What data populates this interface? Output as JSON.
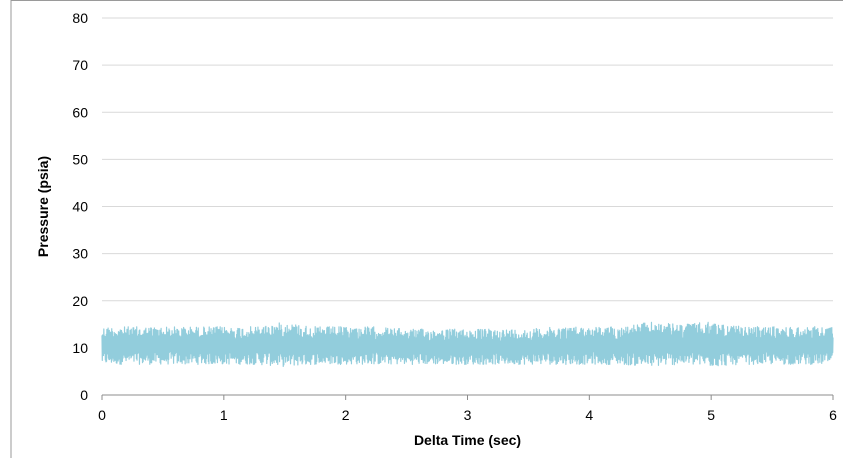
{
  "chart_data": {
    "type": "line",
    "title": "",
    "xlabel": "Delta Time (sec)",
    "ylabel": "Pressure (psia)",
    "xlim": [
      0,
      6
    ],
    "ylim": [
      0,
      80
    ],
    "x_ticks": [
      0,
      1,
      2,
      3,
      4,
      5,
      6
    ],
    "y_ticks": [
      0,
      10,
      20,
      30,
      40,
      50,
      60,
      70,
      80
    ],
    "grid": "horizontal",
    "legend": "none",
    "series": [
      {
        "color": "#92CDDC",
        "style": "dense noisy signal",
        "x": [
          0,
          0.25,
          0.5,
          0.75,
          1.0,
          1.25,
          1.5,
          1.75,
          2.0,
          2.25,
          2.5,
          2.75,
          3.0,
          3.25,
          3.5,
          3.75,
          4.0,
          4.25,
          4.5,
          4.75,
          5.0,
          5.25,
          5.5,
          5.75,
          6.0
        ],
        "y_min": [
          6.5,
          6.5,
          6.5,
          6.5,
          6.5,
          6.5,
          6.0,
          6.5,
          6.5,
          6.5,
          6.5,
          6.5,
          6.5,
          6.5,
          6.5,
          6.5,
          6.5,
          6.5,
          6.0,
          6.5,
          6.0,
          6.5,
          6.5,
          6.5,
          6.5
        ],
        "y_max": [
          14.5,
          14.5,
          14.5,
          14.5,
          14.5,
          14.5,
          15.5,
          14.5,
          14.5,
          14.5,
          14.0,
          14.0,
          14.0,
          14.0,
          14.0,
          14.5,
          14.5,
          14.5,
          15.5,
          15.0,
          15.5,
          14.5,
          14.5,
          14.5,
          14.5
        ],
        "y_mean": [
          10,
          10,
          10,
          10,
          10,
          10,
          10.5,
          10,
          10,
          10,
          10,
          10,
          10,
          10,
          10,
          10,
          10,
          10,
          10.5,
          10.5,
          10.5,
          10,
          10,
          10,
          10
        ]
      }
    ]
  }
}
